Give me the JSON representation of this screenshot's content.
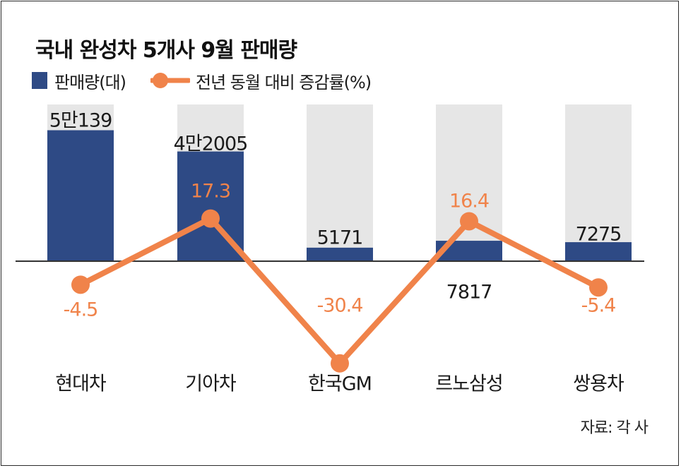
{
  "title": "국내 완성차 5개사 9월 판매량",
  "legend": {
    "bar_label": "판매량(대)",
    "line_label": "전년 동월 대비 증감률(%)"
  },
  "source": "자료: 각 사",
  "colors": {
    "bar": "#2e4a85",
    "bar_bg": "#e6e6e6",
    "line": "#f0834a",
    "line_text": "#f0834a",
    "text": "#1a1a1a"
  },
  "chart_data": {
    "type": "bar",
    "categories": [
      "현대차",
      "기아차",
      "한국GM",
      "르노삼성",
      "쌍용차"
    ],
    "series": [
      {
        "values": [
          50139,
          42005,
          5171,
          7817,
          7275
        ],
        "labels": [
          "5만139",
          "4만2005",
          "5171",
          "7817",
          "7275"
        ]
      },
      {
        "type": "line",
        "values": [
          -4.5,
          17.3,
          -30.4,
          16.4,
          -5.4
        ],
        "labels": [
          "-4.5",
          "17.3",
          "-30.4",
          "16.4",
          "-5.4"
        ]
      }
    ]
  }
}
